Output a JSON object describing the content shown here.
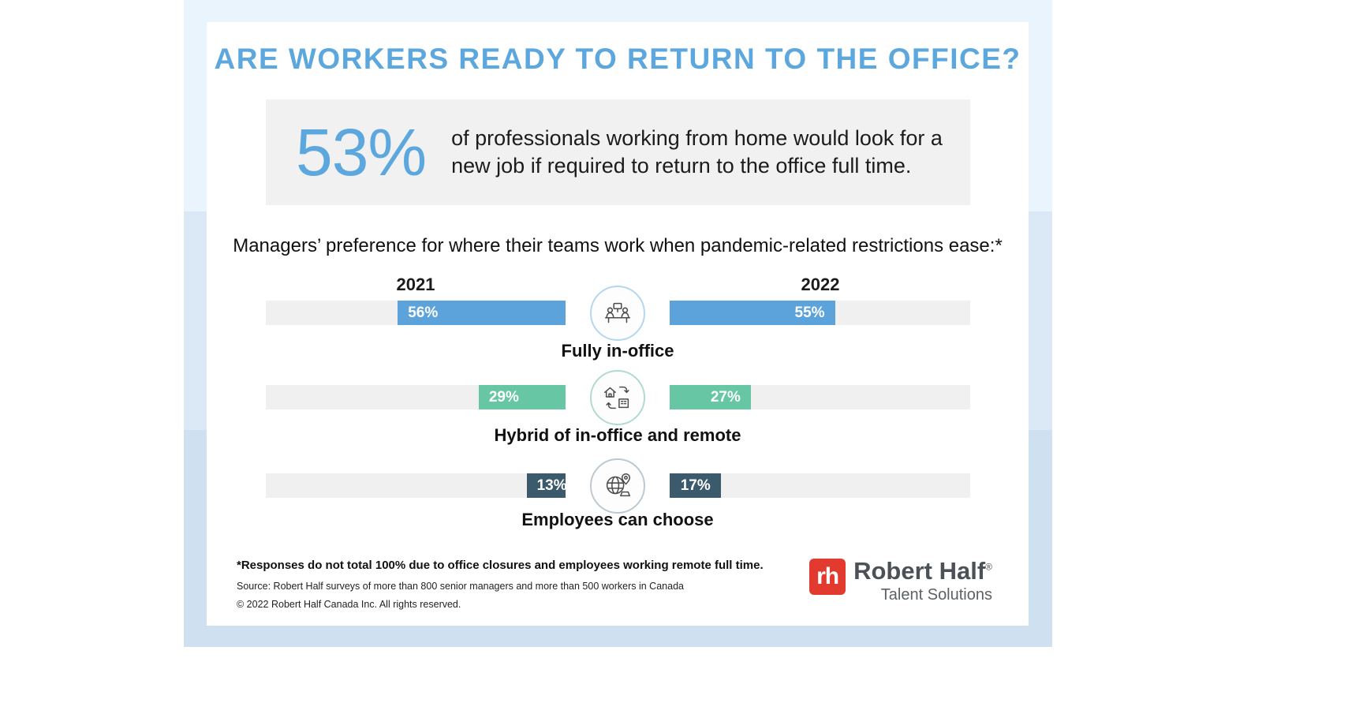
{
  "page": {
    "title": "ARE WORKERS READY TO RETURN TO THE OFFICE?"
  },
  "stat_box": {
    "value": "53%",
    "text": "of professionals working from home would look for a new job if required to return to the office full time."
  },
  "chart_data": {
    "type": "bar",
    "title": "Managers’ preference for where their teams work when pandemic-related restrictions ease:*",
    "categories": [
      "Fully in-office",
      "Hybrid of in-office and remote",
      "Employees can choose"
    ],
    "series": [
      {
        "name": "2021",
        "values": [
          56,
          29,
          13
        ]
      },
      {
        "name": "2022",
        "values": [
          55,
          27,
          17
        ]
      }
    ],
    "value_suffix": "%",
    "bar_colors": [
      "#5ca3dc",
      "#67c6a3",
      "#3b5a6c"
    ],
    "icon_ring_colors": [
      "#b5d7ee",
      "#b0dcc8",
      "#bcc9d1"
    ],
    "track_color": "#f0f0f0",
    "xlim": [
      0,
      100
    ],
    "layout": "mirrored-from-center",
    "icons": [
      "office-meeting-icon",
      "hybrid-home-office-icon",
      "globe-location-icon"
    ]
  },
  "footer": {
    "note": "*Responses do not total 100% due to office closures and employees working remote full time.",
    "source": "Source: Robert Half surveys of more than 800 senior managers and more than 500 workers in Canada",
    "copyright": "© 2022 Robert Half Canada Inc. All rights reserved."
  },
  "logo": {
    "monogram": "rh",
    "name": "Robert Half",
    "registered": "®",
    "tagline": "Talent Solutions"
  },
  "theme": {
    "accent_blue": "#5ba7de",
    "logo_red": "#e23a2e",
    "stat_box_bg": "#f1f1f1",
    "band_colors": [
      "#e9f4fd",
      "#dbe9f7",
      "#cfe0f0"
    ]
  }
}
